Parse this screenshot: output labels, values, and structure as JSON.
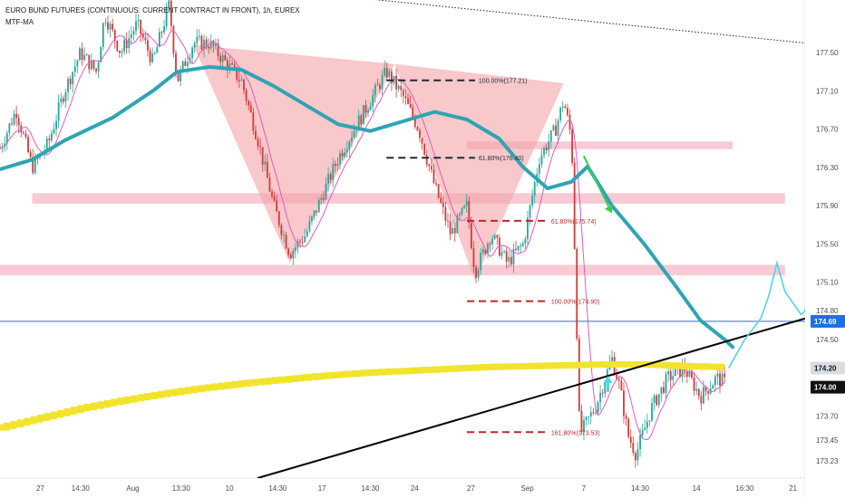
{
  "header": {
    "title": "EURO BUND FUTURES (CONTINUOUS: CURRENT CONTRACT IN FRONT), 1h, EUREX",
    "indicator": "MTF-MA"
  },
  "colors": {
    "candle_up": "#26a69a",
    "candle_down": "#d43a3a",
    "pattern_fill": "#f4a3a6",
    "zone_fill": "#f6b8c6",
    "ma_teal": "#2fa4b5",
    "ma_yellow": "#f2e42e",
    "ma_pink": "#e35bbd",
    "fib_black": "#1f2a36",
    "fib_red": "#c0262b",
    "projection": "#4dd6e6",
    "arrow_green": "#36d14f",
    "h_line": "#2f6fd6",
    "trendline": "#000000"
  },
  "chart_data": {
    "type": "candlestick",
    "title": "EURO BUND FUTURES (CONTINUOUS: CURRENT CONTRACT IN FRONT), 1h, EUREX",
    "ylim": [
      173.05,
      178.05
    ],
    "x_ticks": [
      "27",
      "14:30",
      "Aug",
      "13:30",
      "10",
      "14:30",
      "17",
      "14:30",
      "24",
      "27",
      "Sep",
      "7",
      "14:30",
      "14",
      "16:30",
      "21"
    ],
    "y_ticks": [
      177.5,
      177.1,
      176.7,
      176.3,
      175.9,
      175.5,
      175.1,
      174.8,
      174.5,
      173.7,
      173.45,
      173.23
    ],
    "y_tick_labels": [
      "177.50",
      "177.10",
      "176.70",
      "176.30",
      "175.90",
      "175.50",
      "175.10",
      "174.80",
      "174.50",
      "173.70",
      "173.45",
      "173.23"
    ],
    "price_tags": [
      {
        "label": "174.69",
        "value": 174.69,
        "style": "blue"
      },
      {
        "label": "174.20",
        "value": 174.2,
        "style": "grey"
      },
      {
        "label": "174.00",
        "value": 174.0,
        "style": "black"
      }
    ],
    "fib_levels": [
      {
        "label": "100.00%(177.21)",
        "value": 177.21,
        "color": "black",
        "x_from": 0.48,
        "x_to": 0.59
      },
      {
        "label": "61.80%(176.40)",
        "value": 176.4,
        "color": "black",
        "x_from": 0.48,
        "x_to": 0.59
      },
      {
        "label": "61.80%(175.74)",
        "value": 175.74,
        "color": "red",
        "x_from": 0.58,
        "x_to": 0.68
      },
      {
        "label": "100.00%(174.90)",
        "value": 174.9,
        "color": "red",
        "x_from": 0.58,
        "x_to": 0.68
      },
      {
        "label": "161.80%(173.53)",
        "value": 173.53,
        "color": "red",
        "x_from": 0.58,
        "x_to": 0.68
      }
    ],
    "zones": [
      {
        "x0": 0.04,
        "x1": 0.975,
        "y0": 175.92,
        "y1": 176.03
      },
      {
        "x0": 0.0,
        "x1": 0.975,
        "y0": 175.17,
        "y1": 175.28
      },
      {
        "x0": 0.58,
        "x1": 0.91,
        "y0": 176.49,
        "y1": 176.57
      }
    ],
    "h_line": {
      "value": 174.69
    },
    "trendline": {
      "x0": 0.32,
      "y0": 173.05,
      "x1": 1.0,
      "y1": 174.72
    },
    "dotted_line": {
      "x0": 0.0,
      "y0": 178.45,
      "x1": 1.0,
      "y1": 177.6
    },
    "patterns": [
      {
        "points": [
          [
            0.24,
            177.58
          ],
          [
            0.36,
            175.3
          ],
          [
            0.49,
            177.38
          ]
        ]
      },
      {
        "points": [
          [
            0.49,
            177.38
          ],
          [
            0.59,
            175.12
          ],
          [
            0.7,
            177.18
          ]
        ]
      }
    ],
    "projection": [
      [
        0.905,
        174.2
      ],
      [
        0.925,
        174.5
      ],
      [
        0.945,
        174.72
      ],
      [
        0.955,
        174.96
      ],
      [
        0.965,
        175.3
      ],
      [
        0.975,
        175.0
      ],
      [
        0.995,
        174.76
      ],
      [
        1.0,
        174.8
      ],
      [
        1.02,
        175.95
      ]
    ],
    "arrows": [
      {
        "from": [
          0.725,
          176.42
        ],
        "to": [
          0.76,
          175.82
        ],
        "color": "green"
      },
      {
        "from": [
          0.755,
          173.95
        ],
        "to": [
          0.755,
          174.12
        ],
        "color": "cyan"
      }
    ],
    "ma_teal": [
      [
        0.0,
        176.28
      ],
      [
        0.04,
        176.38
      ],
      [
        0.08,
        176.58
      ],
      [
        0.14,
        176.82
      ],
      [
        0.19,
        177.1
      ],
      [
        0.22,
        177.3
      ],
      [
        0.26,
        177.35
      ],
      [
        0.3,
        177.32
      ],
      [
        0.34,
        177.15
      ],
      [
        0.38,
        176.95
      ],
      [
        0.42,
        176.75
      ],
      [
        0.46,
        176.68
      ],
      [
        0.5,
        176.78
      ],
      [
        0.54,
        176.88
      ],
      [
        0.58,
        176.8
      ],
      [
        0.62,
        176.6
      ],
      [
        0.65,
        176.3
      ],
      [
        0.68,
        176.08
      ],
      [
        0.71,
        176.15
      ],
      [
        0.73,
        176.31
      ],
      [
        0.76,
        175.9
      ],
      [
        0.8,
        175.5
      ],
      [
        0.84,
        175.05
      ],
      [
        0.87,
        174.7
      ],
      [
        0.9,
        174.5
      ],
      [
        0.91,
        174.42
      ]
    ],
    "ma_yellow": [
      [
        0.0,
        173.58
      ],
      [
        0.05,
        173.68
      ],
      [
        0.1,
        173.78
      ],
      [
        0.15,
        173.86
      ],
      [
        0.2,
        173.93
      ],
      [
        0.25,
        173.99
      ],
      [
        0.3,
        174.04
      ],
      [
        0.35,
        174.08
      ],
      [
        0.4,
        174.12
      ],
      [
        0.45,
        174.15
      ],
      [
        0.5,
        174.17
      ],
      [
        0.55,
        174.19
      ],
      [
        0.6,
        174.21
      ],
      [
        0.65,
        174.22
      ],
      [
        0.7,
        174.23
      ],
      [
        0.75,
        174.24
      ],
      [
        0.8,
        174.24
      ],
      [
        0.85,
        174.22
      ],
      [
        0.9,
        174.21
      ]
    ],
    "candle_path": [
      [
        0.0,
        176.5
      ],
      [
        0.02,
        176.9
      ],
      [
        0.04,
        176.3
      ],
      [
        0.06,
        176.55
      ],
      [
        0.08,
        177.1
      ],
      [
        0.1,
        177.5
      ],
      [
        0.12,
        177.3
      ],
      [
        0.13,
        177.9
      ],
      [
        0.15,
        177.5
      ],
      [
        0.17,
        177.8
      ],
      [
        0.19,
        177.4
      ],
      [
        0.21,
        178.0
      ],
      [
        0.22,
        177.2
      ],
      [
        0.24,
        177.6
      ],
      [
        0.26,
        177.6
      ],
      [
        0.28,
        177.4
      ],
      [
        0.3,
        177.2
      ],
      [
        0.32,
        176.6
      ],
      [
        0.34,
        175.9
      ],
      [
        0.36,
        175.4
      ],
      [
        0.38,
        175.6
      ],
      [
        0.4,
        176.0
      ],
      [
        0.42,
        176.4
      ],
      [
        0.44,
        176.7
      ],
      [
        0.46,
        177.0
      ],
      [
        0.48,
        177.3
      ],
      [
        0.5,
        177.05
      ],
      [
        0.52,
        176.7
      ],
      [
        0.54,
        176.1
      ],
      [
        0.56,
        175.6
      ],
      [
        0.58,
        175.9
      ],
      [
        0.59,
        175.2
      ],
      [
        0.61,
        175.6
      ],
      [
        0.63,
        175.3
      ],
      [
        0.65,
        175.5
      ],
      [
        0.67,
        176.4
      ],
      [
        0.69,
        176.7
      ],
      [
        0.7,
        177.0
      ],
      [
        0.71,
        176.6
      ],
      [
        0.72,
        173.5
      ],
      [
        0.74,
        173.8
      ],
      [
        0.76,
        174.3
      ],
      [
        0.77,
        174.0
      ],
      [
        0.78,
        173.5
      ],
      [
        0.79,
        173.3
      ],
      [
        0.81,
        173.8
      ],
      [
        0.83,
        174.1
      ],
      [
        0.85,
        174.2
      ],
      [
        0.87,
        173.9
      ],
      [
        0.89,
        174.1
      ],
      [
        0.9,
        174.05
      ]
    ]
  }
}
